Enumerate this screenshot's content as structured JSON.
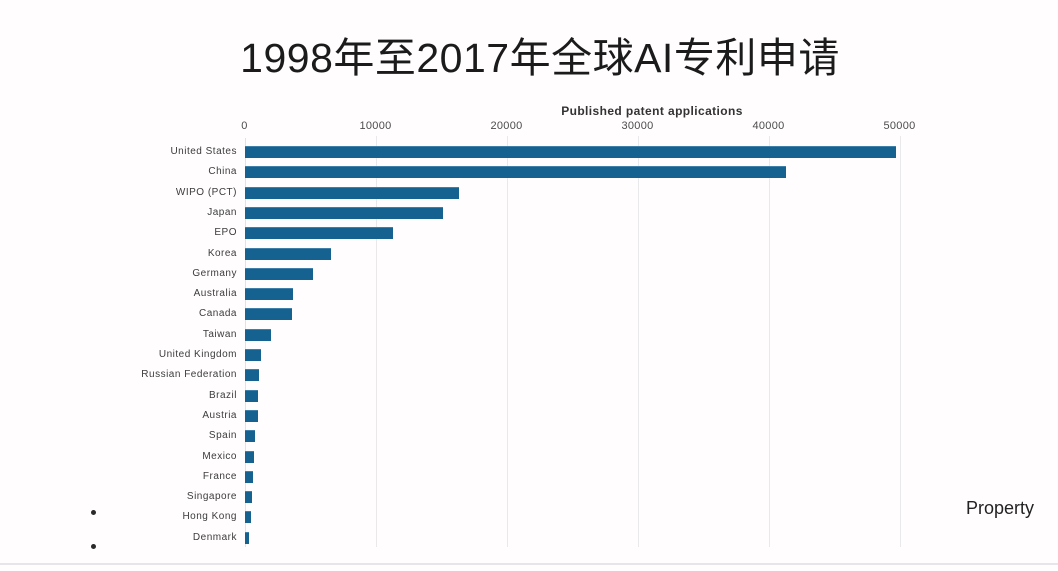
{
  "title": "1998年至2017年全球AI专利申请",
  "watermark": "Property",
  "chart_data": {
    "type": "bar",
    "orientation": "horizontal",
    "title": "1998年至2017年全球AI专利申请",
    "xlabel": "Published patent applications",
    "ylabel": "",
    "xlim": [
      0,
      50000
    ],
    "xticks": [
      0,
      10000,
      20000,
      30000,
      40000,
      50000
    ],
    "grid": true,
    "legend": "none",
    "bar_color": "#156291",
    "categories": [
      "United States",
      "China",
      "WIPO (PCT)",
      "Japan",
      "EPO",
      "Korea",
      "Germany",
      "Australia",
      "Canada",
      "Taiwan",
      "United Kingdom",
      "Russian Federation",
      "Brazil",
      "Austria",
      "Spain",
      "Mexico",
      "France",
      "Singapore",
      "Hong Kong",
      "Denmark"
    ],
    "values": [
      49700,
      41300,
      16300,
      15100,
      11300,
      6600,
      5200,
      3700,
      3600,
      2000,
      1200,
      1100,
      1020,
      980,
      780,
      650,
      620,
      520,
      420,
      300
    ]
  }
}
